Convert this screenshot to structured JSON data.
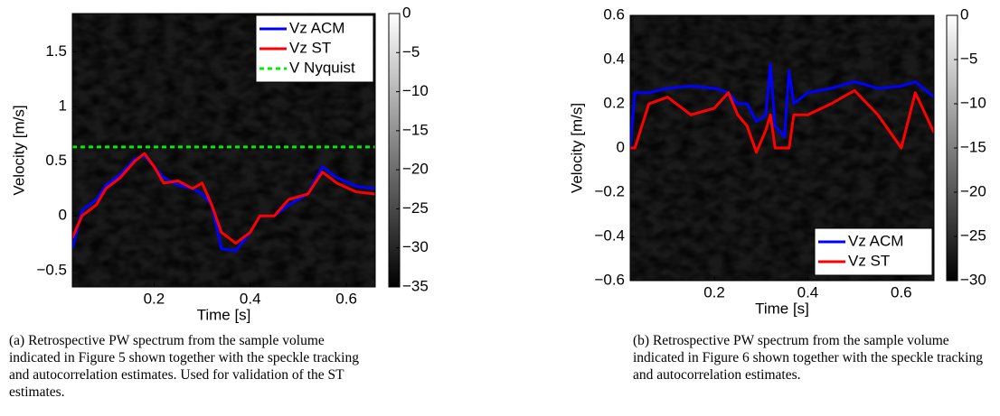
{
  "chart_data": [
    {
      "type": "line",
      "xlabel": "Time [s]",
      "ylabel": "Velocity [m/s]",
      "xlim": [
        0.03,
        0.66
      ],
      "ylim": [
        -0.65,
        1.85
      ],
      "xticks": [
        0.2,
        0.4,
        0.6
      ],
      "yticks": [
        {
          "value": -0.5,
          "label": "−0.5"
        },
        0,
        0.5,
        1,
        1.5
      ],
      "x": [
        0.03,
        0.05,
        0.08,
        0.1,
        0.13,
        0.16,
        0.18,
        0.2,
        0.22,
        0.25,
        0.28,
        0.3,
        0.32,
        0.34,
        0.37,
        0.4,
        0.42,
        0.45,
        0.48,
        0.52,
        0.55,
        0.58,
        0.62,
        0.66
      ],
      "series": [
        {
          "name": "Vz ACM",
          "color": "#0000ff",
          "values": [
            -0.3,
            0.05,
            0.15,
            0.28,
            0.38,
            0.52,
            0.55,
            0.45,
            0.35,
            0.28,
            0.25,
            0.2,
            0.1,
            -0.3,
            -0.32,
            -0.15,
            0.0,
            0.0,
            0.1,
            0.2,
            0.45,
            0.35,
            0.27,
            0.25
          ]
        },
        {
          "name": "Vz ST",
          "color": "#ff0000",
          "values": [
            -0.2,
            0.0,
            0.1,
            0.25,
            0.35,
            0.5,
            0.57,
            0.45,
            0.3,
            0.32,
            0.25,
            0.3,
            0.1,
            -0.15,
            -0.25,
            -0.15,
            0.0,
            0.0,
            0.15,
            0.2,
            0.4,
            0.3,
            0.22,
            0.2
          ]
        },
        {
          "name": "V Nyquist",
          "color": "#00ee00",
          "dashed": true,
          "values": [
            0.63,
            0.63,
            0.63,
            0.63,
            0.63,
            0.63,
            0.63,
            0.63,
            0.63,
            0.63,
            0.63,
            0.63,
            0.63,
            0.63,
            0.63,
            0.63,
            0.63,
            0.63,
            0.63,
            0.63,
            0.63,
            0.63,
            0.63,
            0.63
          ]
        }
      ],
      "legend": "upper right",
      "colorbar_lim": [
        -35,
        0
      ],
      "colorbar_ticks": [
        {
          "value": -35,
          "label": "−35"
        },
        {
          "value": -30,
          "label": "−30"
        },
        {
          "value": -25,
          "label": "−25"
        },
        {
          "value": -20,
          "label": "−20"
        },
        {
          "value": -15,
          "label": "−15"
        },
        {
          "value": -10,
          "label": "−10"
        },
        {
          "value": -5,
          "label": "−5"
        },
        0
      ],
      "caption": "(a) Retrospective PW spectrum from the sample volume indicated in Figure 5 shown together with the speckle tracking and autocorrelation estimates. Used for validation of the ST estimates."
    },
    {
      "type": "line",
      "xlabel": "Time [s]",
      "ylabel": "Velocity [m/s]",
      "xlim": [
        0.02,
        0.67
      ],
      "ylim": [
        -0.6,
        0.6
      ],
      "xticks": [
        0.2,
        0.4,
        0.6
      ],
      "yticks": [
        {
          "value": -0.6,
          "label": "−0.6"
        },
        {
          "value": -0.4,
          "label": "−0.4"
        },
        {
          "value": -0.2,
          "label": "−0.2"
        },
        0,
        0.2,
        0.4,
        0.6
      ],
      "x": [
        0.02,
        0.03,
        0.06,
        0.1,
        0.15,
        0.2,
        0.23,
        0.25,
        0.27,
        0.29,
        0.31,
        0.32,
        0.33,
        0.35,
        0.36,
        0.37,
        0.4,
        0.45,
        0.5,
        0.55,
        0.6,
        0.63,
        0.67
      ],
      "series": [
        {
          "name": "Vz ACM",
          "color": "#0000ff",
          "values": [
            0.0,
            0.25,
            0.25,
            0.27,
            0.28,
            0.27,
            0.25,
            0.2,
            0.2,
            0.12,
            0.15,
            0.38,
            0.1,
            0.05,
            0.35,
            0.2,
            0.25,
            0.27,
            0.3,
            0.27,
            0.28,
            0.3,
            0.23
          ]
        },
        {
          "name": "Vz ST",
          "color": "#ff0000",
          "values": [
            0.0,
            0.0,
            0.2,
            0.23,
            0.15,
            0.18,
            0.25,
            0.15,
            0.1,
            -0.02,
            0.08,
            0.15,
            0.0,
            0.0,
            0.0,
            0.15,
            0.15,
            0.2,
            0.26,
            0.15,
            0.0,
            0.25,
            0.07
          ]
        }
      ],
      "legend": "lower right",
      "colorbar_lim": [
        -30,
        0
      ],
      "colorbar_ticks": [
        {
          "value": -30,
          "label": "−30"
        },
        {
          "value": -25,
          "label": "−25"
        },
        {
          "value": -20,
          "label": "−20"
        },
        {
          "value": -15,
          "label": "−15"
        },
        {
          "value": -10,
          "label": "−10"
        },
        {
          "value": -5,
          "label": "−5"
        },
        0
      ],
      "caption": "(b) Retrospective PW spectrum from the sample volume indicated in Figure 6 shown together with the speckle tracking and autocorrelation estimates."
    }
  ]
}
